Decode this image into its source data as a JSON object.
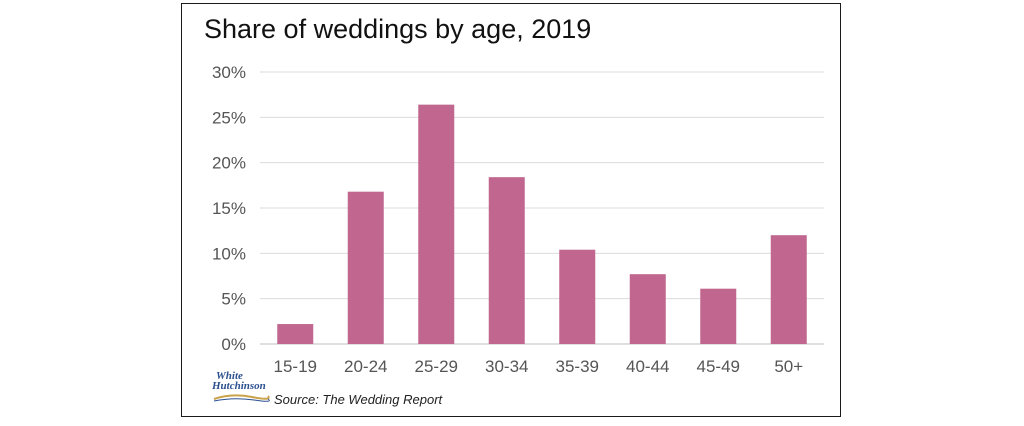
{
  "chart_data": {
    "type": "bar",
    "title": "Share of weddings by age, 2019",
    "categories": [
      "15-19",
      "20-24",
      "25-29",
      "30-34",
      "35-39",
      "40-44",
      "45-49",
      "50+"
    ],
    "values": [
      2.2,
      16.8,
      26.4,
      18.4,
      10.4,
      7.7,
      6.1,
      12.0
    ],
    "ylim": [
      0,
      30
    ],
    "yticks": [
      "0%",
      "5%",
      "10%",
      "15%",
      "20%",
      "25%",
      "30%"
    ],
    "ytick_values": [
      0,
      5,
      10,
      15,
      20,
      25,
      30
    ],
    "xlabel": "",
    "ylabel": "",
    "grid": true,
    "bar_color": "#c0668f",
    "source": "Source: The Wedding Report"
  },
  "logo": {
    "line1": "White",
    "line2": "Hutchinson"
  }
}
